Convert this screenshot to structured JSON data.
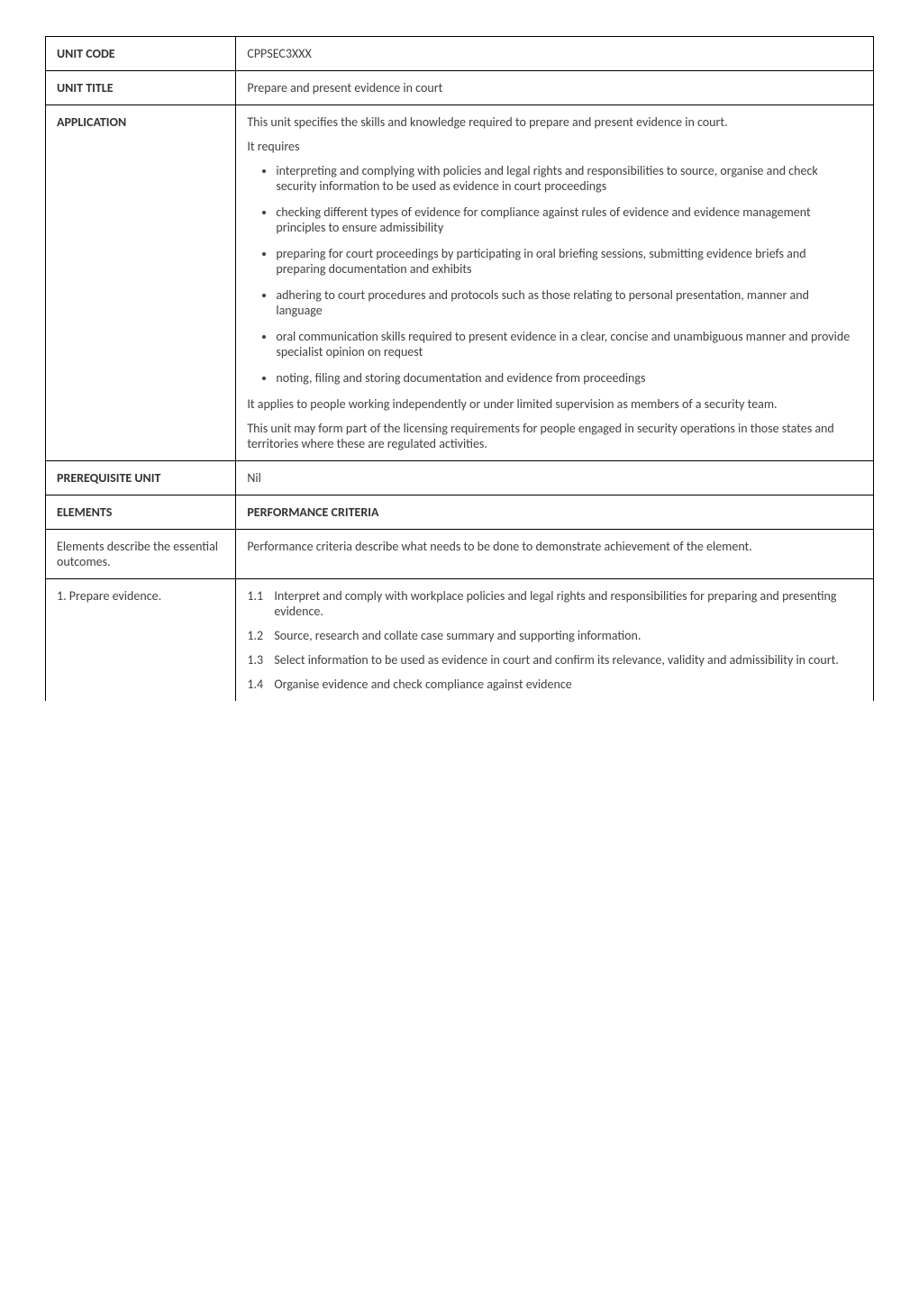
{
  "rows": {
    "unit_code": {
      "label": "UNIT CODE",
      "value": "CPPSEC3XXX"
    },
    "unit_title": {
      "label": "UNIT TITLE",
      "value": "Prepare and present evidence in court"
    },
    "application": {
      "label": "APPLICATION",
      "intro_plain": "This unit specifies the skills and knowledge required ",
      "intro_bold": "to prepare and present evidence in court.",
      "requires": "It requires",
      "bullets": [
        "interpreting and complying with policies and legal rights and responsibilities to source, organise and check security information to be used as evidence in court proceedings",
        "checking different types of evidence for compliance against rules of evidence and evidence management principles to ensure admissibility",
        "preparing for court proceedings by participating in oral briefing sessions, submitting evidence briefs and preparing documentation and exhibits",
        "adhering to court procedures and protocols such as those relating to personal presentation, manner and language",
        "oral communication skills required to present evidence in a clear, concise and unambiguous manner and provide specialist opinion on request",
        "noting, filing and storing documentation and evidence from proceedings"
      ],
      "para1": "It applies to people working independently or under limited supervision as members of a security team.",
      "para2": "This unit may form part of the licensing requirements for people engaged in security operations in those states and territories where these are regulated activities."
    },
    "prerequisite": {
      "label": "PREREQUISITE UNIT",
      "value": "Nil"
    },
    "elements_header": {
      "left": "ELEMENTS",
      "right": "PERFORMANCE CRITERIA"
    },
    "elements_desc": {
      "left": "Elements describe the essential outcomes.",
      "right": "Performance criteria describe what needs to be done to demonstrate achievement of the element."
    },
    "element1": {
      "label": "1.  Prepare evidence.",
      "criteria": [
        {
          "num": "1.1",
          "text": "Interpret and comply with workplace policies and legal rights and responsibilities for preparing and presenting evidence."
        },
        {
          "num": "1.2",
          "text": "Source, research and collate case summary and supporting information."
        },
        {
          "num": "1.3",
          "text": "Select information to be used as evidence in court and confirm its relevance, validity and admissibility in court."
        },
        {
          "num": "1.4",
          "text": "Organise evidence and check compliance against evidence"
        }
      ]
    }
  }
}
